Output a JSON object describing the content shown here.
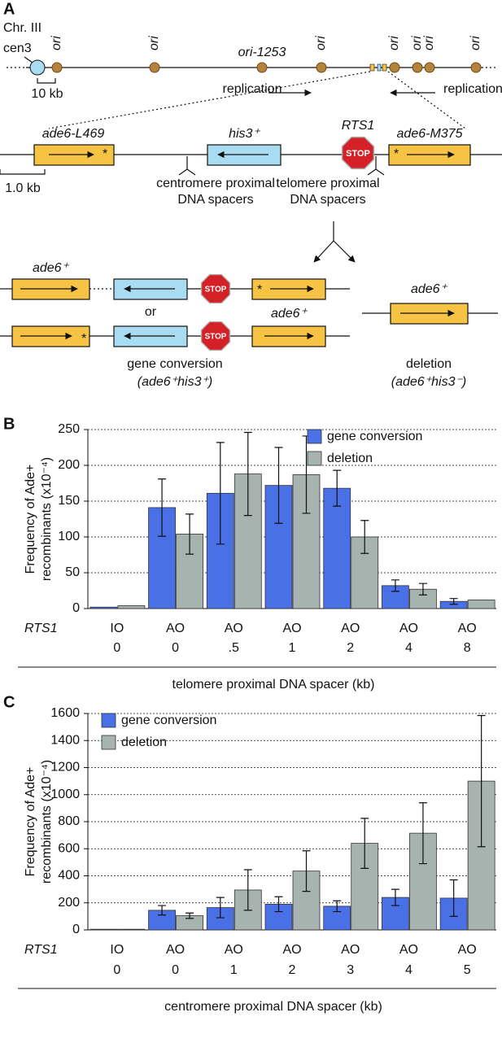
{
  "panel_labels": [
    "A",
    "B",
    "C"
  ],
  "panel_a": {
    "chromosome": "Chr. III",
    "centromere": "cen3",
    "ori_labels": [
      "ori",
      "ori",
      "ori",
      "ori",
      "ori",
      "ori",
      "ori"
    ],
    "named_ori": "ori-1253",
    "scale_large": "10 kb",
    "replication_left": "replication",
    "replication_right": "replication",
    "allele_left": "ade6-L469",
    "marker": "his3⁺",
    "barrier": "RTS1",
    "allele_right": "ade6-M375",
    "stop": "STOP",
    "star": "*",
    "scale_small": "1.0 kb",
    "centromere_spacers": [
      "centromere proximal",
      "DNA spacers"
    ],
    "telomere_spacers": [
      "telomere proximal",
      "DNA spacers"
    ],
    "product_allele": "ade6⁺",
    "or": "or",
    "gene_conversion": [
      "gene conversion",
      "(ade6⁺his3⁺)"
    ],
    "deletion": [
      "deletion",
      "(ade6⁺his3⁻)"
    ]
  },
  "chart_data": [
    {
      "type": "bar",
      "ylabel": [
        "Frequency of Ade+",
        "recombinants (x10⁻⁴)"
      ],
      "row_label": "RTS1",
      "rts1": [
        "IO",
        "AO",
        "AO",
        "AO",
        "AO",
        "AO",
        "AO"
      ],
      "categories": [
        "0",
        "0",
        ".5",
        "1",
        "2",
        "4",
        "8"
      ],
      "xlabel": "telomere proximal DNA spacer (kb)",
      "ylim": [
        0,
        250
      ],
      "yticks": [
        0,
        50,
        100,
        150,
        200,
        250
      ],
      "grid": true,
      "legend": "upper right",
      "series": [
        {
          "name": "gene conversion",
          "color": "#4a70e6",
          "values": [
            2,
            141,
            161,
            172,
            168,
            32,
            10
          ],
          "errors": [
            null,
            40,
            71,
            53,
            25,
            8,
            4
          ]
        },
        {
          "name": "deletion",
          "color": "#a6b3af",
          "values": [
            4,
            104,
            188,
            187,
            100,
            27,
            12
          ],
          "errors": [
            null,
            28,
            58,
            54,
            23,
            8,
            null
          ]
        }
      ]
    },
    {
      "type": "bar",
      "ylabel": [
        "Frequency of Ade+",
        "recombinants (x10⁻⁴)"
      ],
      "row_label": "RTS1",
      "rts1": [
        "IO",
        "AO",
        "AO",
        "AO",
        "AO",
        "AO",
        "AO"
      ],
      "categories": [
        "0",
        "0",
        "1",
        "2",
        "3",
        "4",
        "5"
      ],
      "xlabel": "centromere proximal DNA spacer (kb)",
      "ylim": [
        0,
        1600
      ],
      "yticks": [
        0,
        200,
        400,
        600,
        800,
        1000,
        1200,
        1400,
        1600
      ],
      "grid": true,
      "legend": "upper left",
      "series": [
        {
          "name": "gene conversion",
          "color": "#4a70e6",
          "values": [
            5,
            145,
            165,
            190,
            175,
            240,
            235
          ],
          "errors": [
            null,
            35,
            75,
            55,
            40,
            60,
            135
          ]
        },
        {
          "name": "deletion",
          "color": "#a6b3af",
          "values": [
            5,
            105,
            295,
            435,
            640,
            715,
            1100
          ],
          "errors": [
            null,
            20,
            150,
            150,
            185,
            225,
            485
          ]
        }
      ]
    }
  ]
}
